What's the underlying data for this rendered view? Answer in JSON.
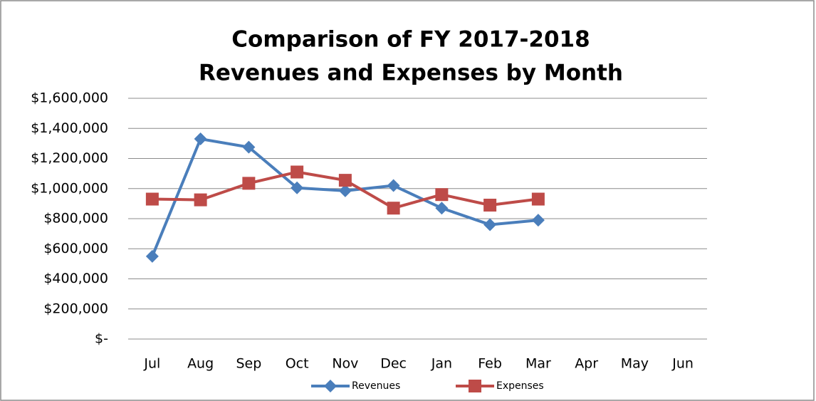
{
  "chart_data": {
    "type": "line",
    "title": [
      "Comparison of FY 2017-2018",
      "Revenues and Expenses by Month"
    ],
    "categories": [
      "Jul",
      "Aug",
      "Sep",
      "Oct",
      "Nov",
      "Dec",
      "Jan",
      "Feb",
      "Mar",
      "Apr",
      "May",
      "Jun"
    ],
    "series": [
      {
        "name": "Revenues",
        "color": "#4a7ebb",
        "marker": "diamond",
        "values": [
          550000,
          1330000,
          1275000,
          1005000,
          985000,
          1020000,
          870000,
          760000,
          790000,
          null,
          null,
          null
        ]
      },
      {
        "name": "Expenses",
        "color": "#be4b48",
        "marker": "square",
        "values": [
          930000,
          925000,
          1035000,
          1110000,
          1055000,
          870000,
          960000,
          890000,
          930000,
          null,
          null,
          null
        ]
      }
    ],
    "ylim": [
      0,
      1600000
    ],
    "yticks": [
      {
        "value": 0,
        "label": "$-"
      },
      {
        "value": 200000,
        "label": "$200,000"
      },
      {
        "value": 400000,
        "label": "$400,000"
      },
      {
        "value": 600000,
        "label": "$600,000"
      },
      {
        "value": 800000,
        "label": "$800,000"
      },
      {
        "value": 1000000,
        "label": "$1,000,000"
      },
      {
        "value": 1200000,
        "label": "$1,200,000"
      },
      {
        "value": 1400000,
        "label": "$1,400,000"
      },
      {
        "value": 1600000,
        "label": "$1,600,000"
      }
    ],
    "grid": true,
    "legend": "bottom"
  }
}
